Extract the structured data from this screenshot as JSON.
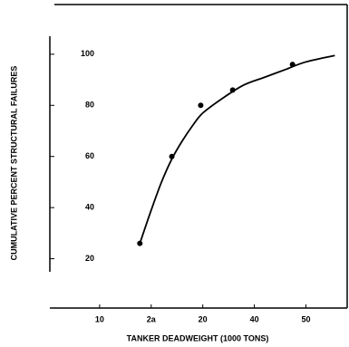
{
  "chart_data": {
    "type": "scatter",
    "xlabel": "TANKER DEADWEIGHT (1000 TONS)",
    "ylabel": "CUMULATIVE PERCENT STRUCTURAL FAILURES",
    "xlim": [
      5,
      34
    ],
    "ylim": [
      0,
      112
    ],
    "xticks": [
      10,
      {
        "value": 15,
        "label": "2a"
      },
      20,
      {
        "value": 25,
        "label": "40"
      },
      {
        "value": 30,
        "label": "50"
      }
    ],
    "yticks": [
      20,
      40,
      60,
      80,
      100
    ],
    "color": "#000000",
    "series": [
      {
        "style": "markers",
        "x": [
          13.9,
          17.0,
          19.8,
          22.9,
          28.7
        ],
        "values": [
          26,
          60,
          80,
          86,
          96
        ]
      },
      {
        "style": "line",
        "x": [
          13.9,
          15,
          16,
          17,
          18,
          19,
          20,
          22,
          24,
          26,
          28,
          30,
          32.8
        ],
        "values": [
          26,
          39,
          50,
          59,
          66,
          72,
          77,
          83,
          88,
          91,
          94,
          97,
          99.5
        ]
      }
    ]
  }
}
